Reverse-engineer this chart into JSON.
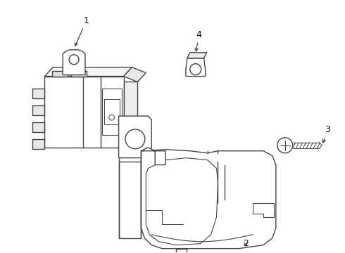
{
  "bg_color": "#ffffff",
  "line_color": "#444444",
  "line_width": 1.0,
  "figsize": [
    4.9,
    3.6
  ],
  "dpi": 100
}
